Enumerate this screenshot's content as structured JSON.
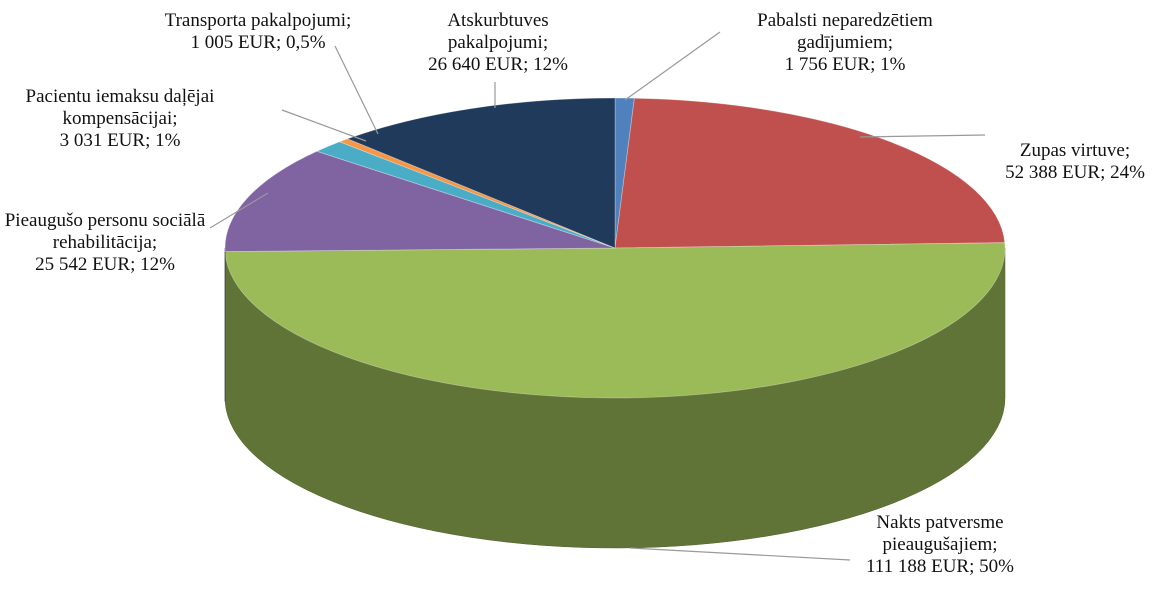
{
  "chart_data": {
    "type": "pie",
    "categories": [
      "Pabalsti neparedzētiem gadījumiem;",
      "Zupas virtuve;",
      "Nakts patversme pieaugušajiem;",
      "Pieaugušo personu sociālā rehabilitācija;",
      "Pacientu iemaksu daļējai kompensācijai;",
      "Transporta pakalpojumi;",
      "Atskurbtuves pakalpojumi;"
    ],
    "values": [
      1756,
      52388,
      111188,
      25542,
      3031,
      1005,
      26640
    ],
    "value_labels": [
      "1 756 EUR; 1%",
      "52 388 EUR; 24%",
      "111 188 EUR; 50%",
      "25 542 EUR; 12%",
      "3 031 EUR; 1%",
      "1 005 EUR; 0,5%",
      "26 640 EUR; 12%"
    ],
    "colors": [
      "#4f81bd",
      "#c0504d",
      "#9bbb59",
      "#8064a2",
      "#4bacc6",
      "#f79646",
      "#1f3a5a"
    ]
  }
}
